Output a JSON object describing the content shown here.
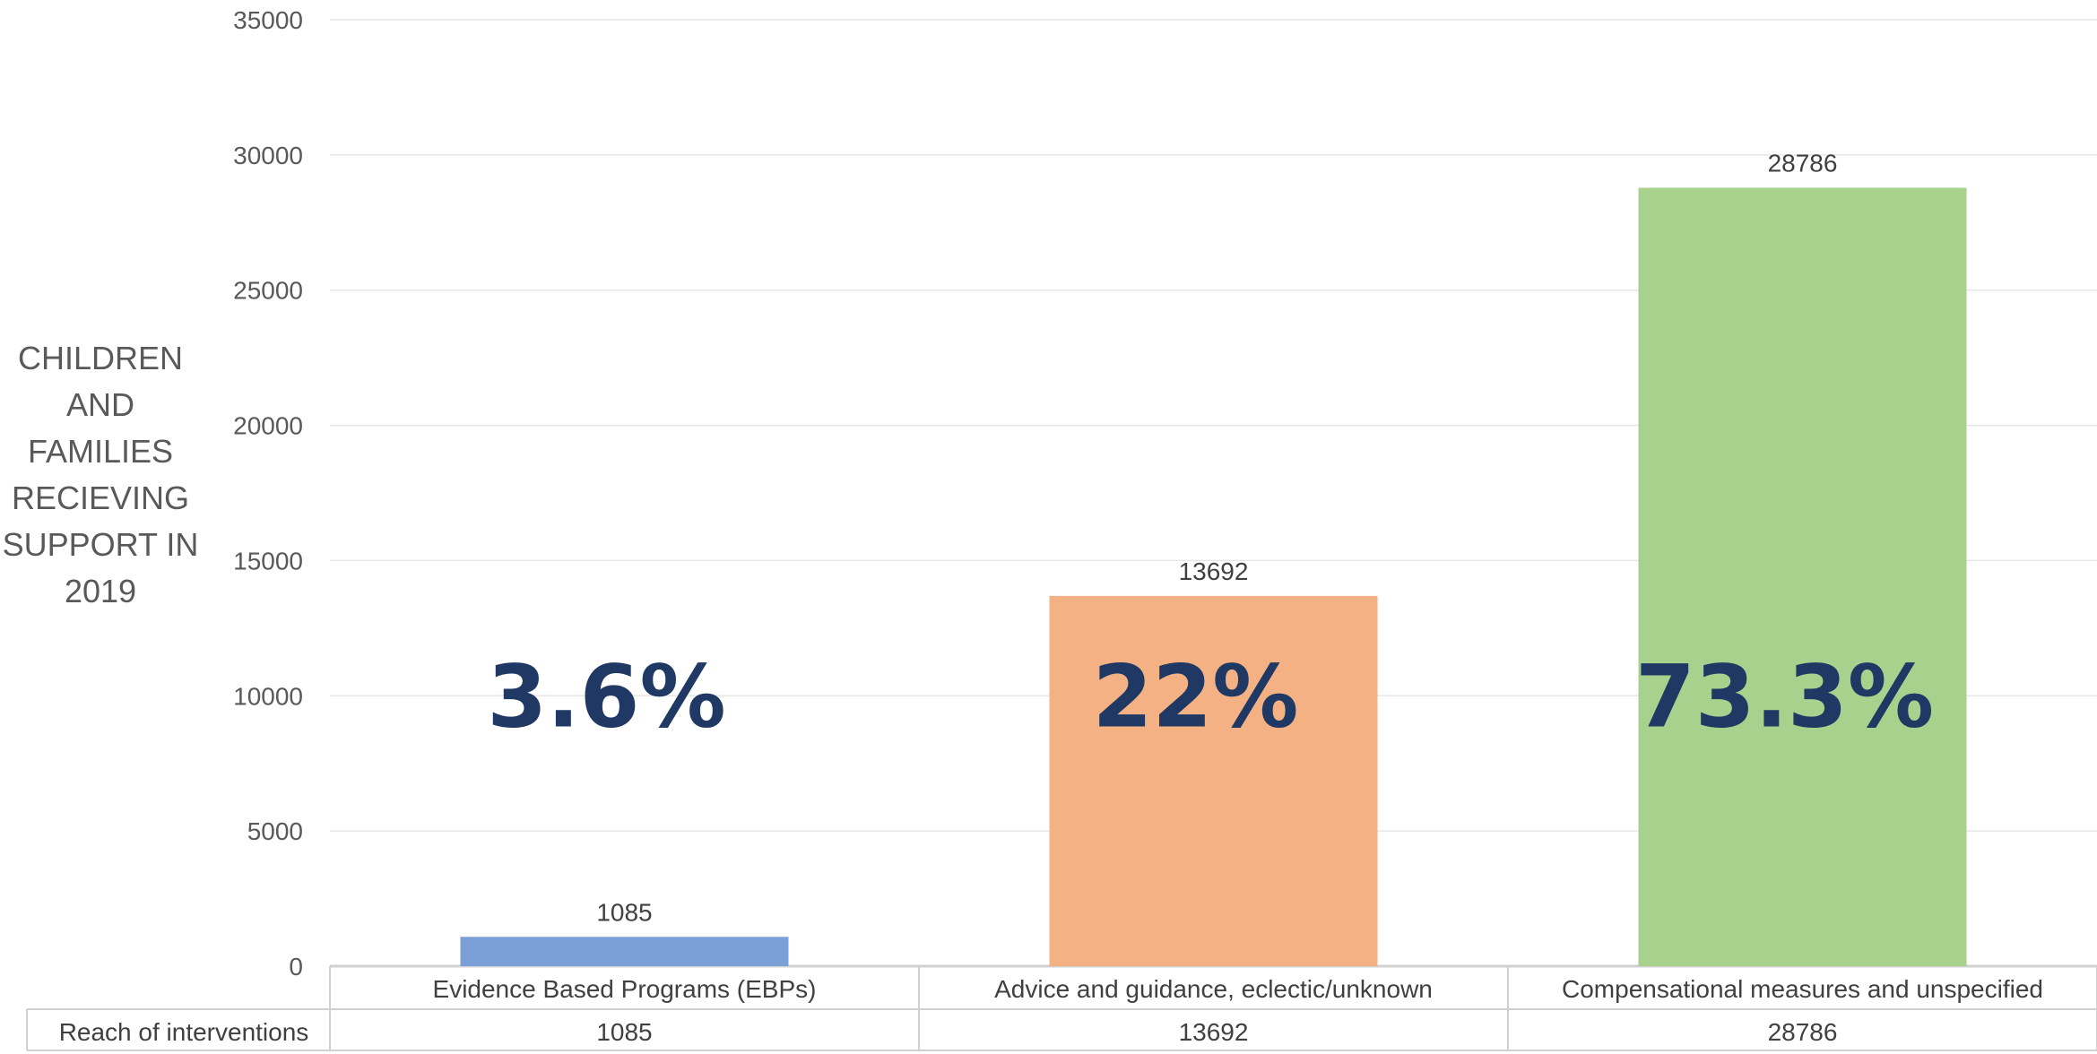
{
  "chart_data": {
    "type": "bar",
    "ylabel_lines": [
      "CHILDREN",
      "AND",
      "FAMILIES",
      "RECIEVING",
      "SUPPORT IN",
      "2019"
    ],
    "ylim": [
      0,
      35000
    ],
    "yticks": [
      0,
      5000,
      10000,
      15000,
      20000,
      25000,
      30000,
      35000
    ],
    "grid": true,
    "categories": [
      "Evidence Based Programs (EBPs)",
      "Advice and guidance, eclectic/unknown",
      "Compensational measures and unspecified"
    ],
    "values": [
      1085,
      13692,
      28786
    ],
    "data_labels": [
      "1085",
      "13692",
      "28786"
    ],
    "annotations": [
      "3.6%",
      "22%",
      "73.3%"
    ],
    "colors": [
      "#7ba0d8",
      "#f4b183",
      "#a9d18e"
    ],
    "table": {
      "row_header": "Reach of interventions",
      "values": [
        "1085",
        "13692",
        "28786"
      ]
    }
  }
}
